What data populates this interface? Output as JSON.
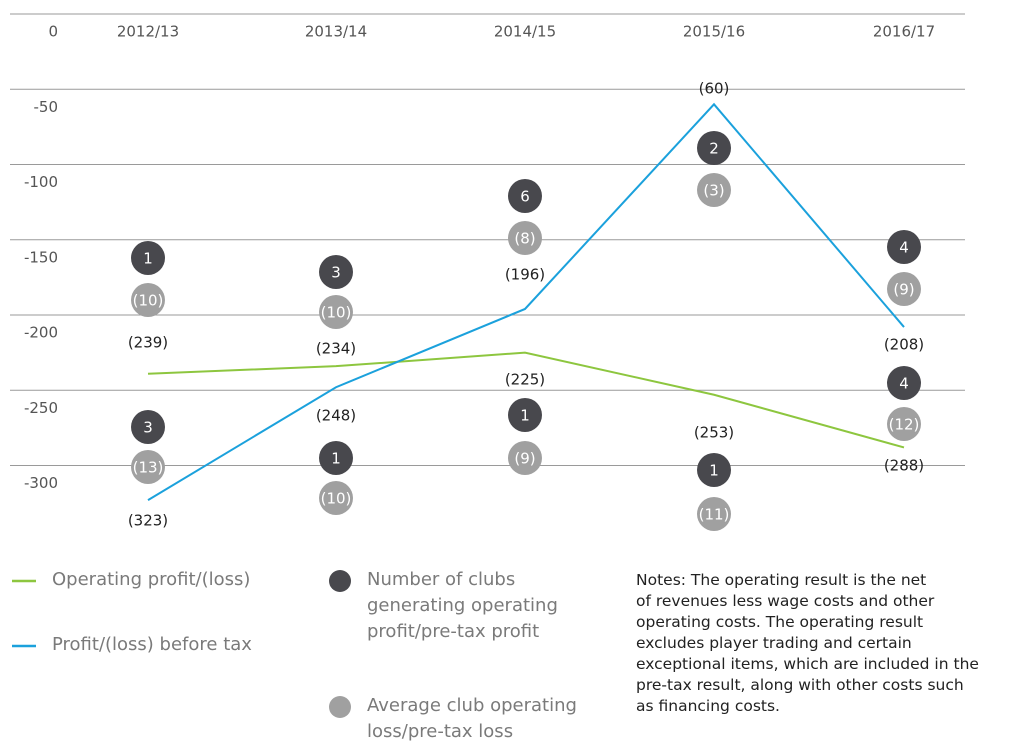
{
  "chart_data": {
    "type": "line",
    "categories": [
      "2012/13",
      "2013/14",
      "2014/15",
      "2015/16",
      "2016/17"
    ],
    "series": [
      {
        "name": "Operating profit/(loss)",
        "color": "#8dc63f",
        "values": [
          -239,
          -234,
          -225,
          -253,
          -288
        ],
        "value_labels": [
          "(239)",
          "(234)",
          "(225)",
          "(253)",
          "(288)"
        ]
      },
      {
        "name": "Profit/(loss) before tax",
        "color": "#1ba1dc",
        "values": [
          -323,
          -248,
          -196,
          -60,
          -208
        ],
        "value_labels": [
          "(323)",
          "(248)",
          "(196)",
          "(60)",
          "(208)"
        ]
      }
    ],
    "club_counts": {
      "name": "Number of clubs generating operating profit/pre-tax profit",
      "color": "#48484d",
      "operating": [
        1,
        3,
        1,
        1,
        4
      ],
      "pre_tax": [
        3,
        1,
        6,
        2,
        4
      ]
    },
    "average_loss": {
      "name": "Average club operating loss/pre-tax loss",
      "color": "#a0a0a0",
      "operating": [
        -10,
        -10,
        -9,
        -11,
        -12
      ],
      "operating_labels": [
        "(10)",
        "(10)",
        "(9)",
        "(11)",
        "(12)"
      ],
      "pre_tax": [
        -13,
        -10,
        -8,
        -3,
        -9
      ],
      "pre_tax_labels": [
        "(13)",
        "(10)",
        "(8)",
        "(3)",
        "(9)"
      ]
    },
    "ylim": [
      -350,
      0
    ],
    "yticks": [
      0,
      -50,
      -100,
      -150,
      -200,
      -250,
      -300
    ],
    "grid": true,
    "notes": [
      "Notes: The operating result is the net",
      "of revenues less wage costs and other",
      "operating costs. The operating result",
      "excludes player trading and certain",
      "exceptional items, which are included in the",
      "pre-tax result, along with other costs such",
      "as financing costs."
    ]
  }
}
